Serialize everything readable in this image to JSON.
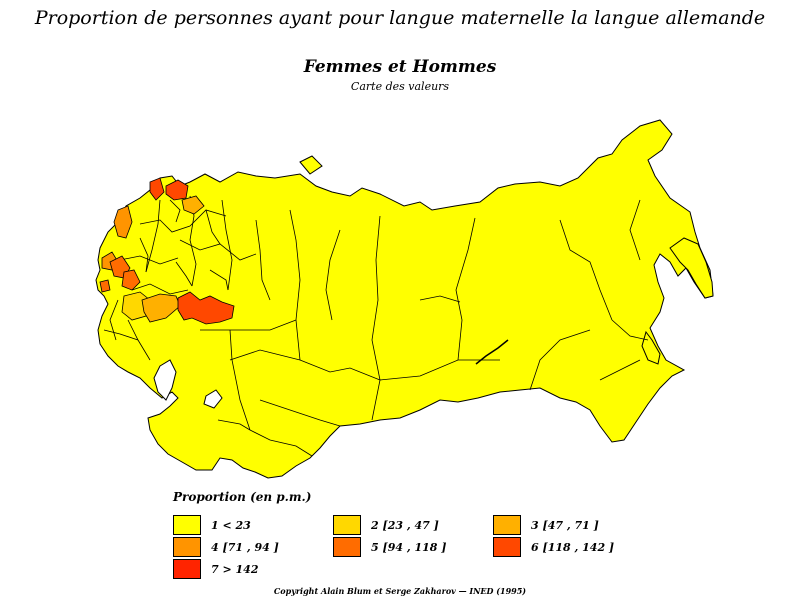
{
  "title": {
    "line1": "Proportion de personnes ayant pour langue maternelle la langue allemande",
    "line2": "Femmes et Hommes",
    "line3": "Carte des valeurs"
  },
  "legend": {
    "title": "Proportion (en p.m.)",
    "items": [
      {
        "label": "1  <  23",
        "color": "#ffff00"
      },
      {
        "label": "2  [23  ,  47 ]",
        "color": "#ffd800"
      },
      {
        "label": "3  [47  ,  71 ]",
        "color": "#ffb000"
      },
      {
        "label": "4  [71  ,  94 ]",
        "color": "#ff9400"
      },
      {
        "label": "5  [94  ,  118 ]",
        "color": "#ff6c00"
      },
      {
        "label": "6  [118  ,  142 ]",
        "color": "#ff4800"
      },
      {
        "label": "7  >  142",
        "color": "#ff2400"
      }
    ]
  },
  "copyright": "Copyright Alain Blum et Serge Zakharov  —  INED (1995)"
}
